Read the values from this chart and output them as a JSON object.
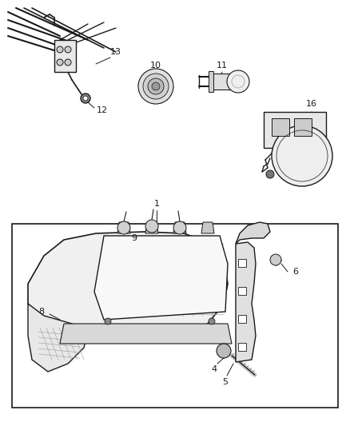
{
  "bg_color": "#ffffff",
  "fig_width": 4.38,
  "fig_height": 5.33,
  "dpi": 100,
  "line_color": "#1a1a1a",
  "text_color": "#1a1a1a",
  "font_size": 8.0,
  "gray_fill": "#d8d8d8",
  "light_fill": "#f0f0f0",
  "mid_fill": "#c8c8c8"
}
